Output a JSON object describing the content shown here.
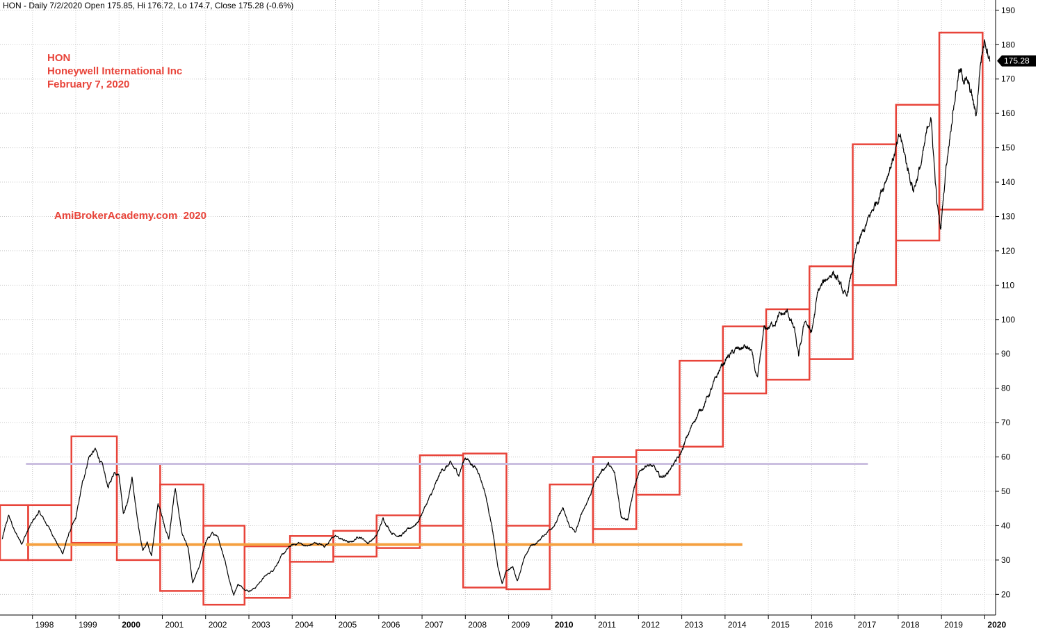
{
  "header": "HON - Daily 7/2/2020 Open 175.85, Hi 176.72, Lo 174.7, Close 175.28 (-0.6%)",
  "annotation": {
    "ticker": "HON",
    "company": "Honeywell International Inc",
    "date": "February 7, 2020",
    "watermark": "AmiBrokerAcademy.com  2020"
  },
  "colors": {
    "price": "#000000",
    "boxes": "#e8443a",
    "support": "#f5a040",
    "resistance": "#cbbfe0",
    "grid": "#c8c8c8",
    "annotation": "#e8443a"
  },
  "chart_data": {
    "type": "line",
    "title": "",
    "xlabel": "",
    "ylabel": "",
    "ylim": [
      14,
      193
    ],
    "xlim": [
      1997.25,
      2020.25
    ],
    "yticks": [
      20,
      30,
      40,
      50,
      60,
      70,
      80,
      90,
      100,
      110,
      120,
      130,
      140,
      150,
      160,
      170,
      180,
      190
    ],
    "xtick_labels": [
      "1998",
      "1999",
      "2000",
      "2001",
      "2002",
      "2003",
      "2004",
      "2005",
      "2006",
      "2007",
      "2008",
      "2009",
      "2010",
      "2011",
      "2012",
      "2013",
      "2014",
      "2015",
      "2016",
      "2017",
      "2018",
      "2019",
      "2020"
    ],
    "bold_xticks": [
      "2000",
      "2010",
      "2020"
    ],
    "last_price_label": "175.28",
    "last_price": 175.28,
    "series": [
      {
        "points": [
          [
            1997.3,
            36
          ],
          [
            1997.45,
            43
          ],
          [
            1997.6,
            38
          ],
          [
            1997.75,
            35
          ],
          [
            1997.95,
            40
          ],
          [
            1998.15,
            44
          ],
          [
            1998.3,
            41
          ],
          [
            1998.45,
            38
          ],
          [
            1998.6,
            34
          ],
          [
            1998.7,
            32
          ],
          [
            1998.85,
            38
          ],
          [
            1999.0,
            42
          ],
          [
            1999.15,
            52
          ],
          [
            1999.3,
            60
          ],
          [
            1999.45,
            62
          ],
          [
            1999.6,
            58
          ],
          [
            1999.75,
            51
          ],
          [
            1999.9,
            56
          ],
          [
            2000.0,
            55
          ],
          [
            2000.1,
            44
          ],
          [
            2000.2,
            47
          ],
          [
            2000.3,
            54
          ],
          [
            2000.45,
            39
          ],
          [
            2000.55,
            33
          ],
          [
            2000.65,
            35
          ],
          [
            2000.75,
            31
          ],
          [
            2000.9,
            47
          ],
          [
            2001.05,
            40
          ],
          [
            2001.15,
            36
          ],
          [
            2001.3,
            51
          ],
          [
            2001.45,
            38
          ],
          [
            2001.6,
            33
          ],
          [
            2001.7,
            23
          ],
          [
            2001.85,
            28
          ],
          [
            2002.0,
            35
          ],
          [
            2002.15,
            38
          ],
          [
            2002.3,
            36
          ],
          [
            2002.45,
            30
          ],
          [
            2002.55,
            24
          ],
          [
            2002.65,
            20
          ],
          [
            2002.75,
            23
          ],
          [
            2002.85,
            22
          ],
          [
            2003.0,
            21
          ],
          [
            2003.15,
            22
          ],
          [
            2003.35,
            25
          ],
          [
            2003.55,
            27
          ],
          [
            2003.75,
            31
          ],
          [
            2003.95,
            34
          ],
          [
            2004.15,
            35
          ],
          [
            2004.35,
            34
          ],
          [
            2004.55,
            35
          ],
          [
            2004.75,
            34
          ],
          [
            2004.95,
            37
          ],
          [
            2005.15,
            36
          ],
          [
            2005.35,
            35
          ],
          [
            2005.55,
            37
          ],
          [
            2005.75,
            35
          ],
          [
            2005.95,
            37
          ],
          [
            2006.1,
            42
          ],
          [
            2006.3,
            38
          ],
          [
            2006.5,
            37
          ],
          [
            2006.7,
            39
          ],
          [
            2006.9,
            41
          ],
          [
            2007.05,
            45
          ],
          [
            2007.25,
            50
          ],
          [
            2007.45,
            56
          ],
          [
            2007.65,
            58
          ],
          [
            2007.85,
            55
          ],
          [
            2008.0,
            60
          ],
          [
            2008.15,
            58
          ],
          [
            2008.3,
            56
          ],
          [
            2008.45,
            50
          ],
          [
            2008.6,
            41
          ],
          [
            2008.75,
            28
          ],
          [
            2008.85,
            23
          ],
          [
            2008.95,
            27
          ],
          [
            2009.1,
            28
          ],
          [
            2009.2,
            24
          ],
          [
            2009.35,
            30
          ],
          [
            2009.5,
            34
          ],
          [
            2009.65,
            35
          ],
          [
            2009.8,
            37
          ],
          [
            2009.95,
            39
          ],
          [
            2010.1,
            41
          ],
          [
            2010.25,
            45
          ],
          [
            2010.4,
            40
          ],
          [
            2010.55,
            38
          ],
          [
            2010.7,
            44
          ],
          [
            2010.85,
            48
          ],
          [
            2011.0,
            53
          ],
          [
            2011.15,
            56
          ],
          [
            2011.3,
            58
          ],
          [
            2011.45,
            55
          ],
          [
            2011.6,
            43
          ],
          [
            2011.75,
            42
          ],
          [
            2011.9,
            51
          ],
          [
            2012.05,
            56
          ],
          [
            2012.2,
            58
          ],
          [
            2012.35,
            57
          ],
          [
            2012.5,
            54
          ],
          [
            2012.65,
            55
          ],
          [
            2012.8,
            58
          ],
          [
            2012.95,
            60
          ],
          [
            2013.1,
            65
          ],
          [
            2013.3,
            71
          ],
          [
            2013.5,
            75
          ],
          [
            2013.7,
            80
          ],
          [
            2013.9,
            86
          ],
          [
            2014.05,
            89
          ],
          [
            2014.25,
            91
          ],
          [
            2014.45,
            92
          ],
          [
            2014.6,
            91
          ],
          [
            2014.75,
            82
          ],
          [
            2014.9,
            97
          ],
          [
            2015.05,
            98
          ],
          [
            2015.25,
            101
          ],
          [
            2015.45,
            102
          ],
          [
            2015.6,
            97
          ],
          [
            2015.7,
            89
          ],
          [
            2015.85,
            100
          ],
          [
            2016.0,
            96
          ],
          [
            2016.15,
            108
          ],
          [
            2016.35,
            112
          ],
          [
            2016.5,
            114
          ],
          [
            2016.65,
            110
          ],
          [
            2016.8,
            106
          ],
          [
            2016.95,
            115
          ],
          [
            2017.05,
            121
          ],
          [
            2017.25,
            127
          ],
          [
            2017.45,
            133
          ],
          [
            2017.65,
            139
          ],
          [
            2017.85,
            146
          ],
          [
            2018.05,
            153
          ],
          [
            2018.2,
            145
          ],
          [
            2018.35,
            138
          ],
          [
            2018.55,
            146
          ],
          [
            2018.75,
            160
          ],
          [
            2018.9,
            133
          ],
          [
            2018.98,
            126
          ],
          [
            2019.1,
            144
          ],
          [
            2019.25,
            160
          ],
          [
            2019.4,
            172
          ],
          [
            2019.55,
            170
          ],
          [
            2019.7,
            165
          ],
          [
            2019.8,
            159
          ],
          [
            2019.9,
            175
          ],
          [
            2020.0,
            182
          ],
          [
            2020.1,
            178
          ],
          [
            2020.12,
            175.28
          ]
        ]
      }
    ],
    "boxes": [
      {
        "x0": 1997.25,
        "x1": 1997.9,
        "y0": 30,
        "y1": 46
      },
      {
        "x0": 1997.9,
        "x1": 1998.9,
        "y0": 30,
        "y1": 46
      },
      {
        "x0": 1998.9,
        "x1": 1999.95,
        "y0": 35,
        "y1": 66
      },
      {
        "x0": 1999.95,
        "x1": 2000.95,
        "y0": 30,
        "y1": 58
      },
      {
        "x0": 2000.95,
        "x1": 2001.95,
        "y0": 21,
        "y1": 52
      },
      {
        "x0": 2001.95,
        "x1": 2002.9,
        "y0": 17,
        "y1": 40
      },
      {
        "x0": 2002.9,
        "x1": 2003.95,
        "y0": 19,
        "y1": 34
      },
      {
        "x0": 2003.95,
        "x1": 2004.95,
        "y0": 29.5,
        "y1": 37
      },
      {
        "x0": 2004.95,
        "x1": 2005.95,
        "y0": 31,
        "y1": 38.5
      },
      {
        "x0": 2005.95,
        "x1": 2006.95,
        "y0": 33.5,
        "y1": 43
      },
      {
        "x0": 2006.95,
        "x1": 2007.95,
        "y0": 40,
        "y1": 60.5
      },
      {
        "x0": 2007.95,
        "x1": 2008.95,
        "y0": 22,
        "y1": 61
      },
      {
        "x0": 2008.95,
        "x1": 2009.95,
        "y0": 21.5,
        "y1": 40
      },
      {
        "x0": 2009.95,
        "x1": 2010.95,
        "y0": 34.5,
        "y1": 52
      },
      {
        "x0": 2010.95,
        "x1": 2011.95,
        "y0": 39,
        "y1": 60
      },
      {
        "x0": 2011.95,
        "x1": 2012.95,
        "y0": 49,
        "y1": 62
      },
      {
        "x0": 2012.95,
        "x1": 2013.95,
        "y0": 63,
        "y1": 88
      },
      {
        "x0": 2013.95,
        "x1": 2014.95,
        "y0": 78.5,
        "y1": 98
      },
      {
        "x0": 2014.95,
        "x1": 2015.95,
        "y0": 82.5,
        "y1": 103
      },
      {
        "x0": 2015.95,
        "x1": 2016.95,
        "y0": 88.5,
        "y1": 115.5
      },
      {
        "x0": 2016.95,
        "x1": 2017.95,
        "y0": 110,
        "y1": 151
      },
      {
        "x0": 2017.95,
        "x1": 2018.95,
        "y0": 123,
        "y1": 162.5
      },
      {
        "x0": 2018.95,
        "x1": 2019.95,
        "y0": 132,
        "y1": 183.5
      }
    ],
    "support_line": {
      "x0": 1997.85,
      "x1": 2014.4,
      "y": 34.5
    },
    "resistance_line": {
      "x0": 1997.85,
      "x1": 2017.3,
      "y": 58
    }
  }
}
